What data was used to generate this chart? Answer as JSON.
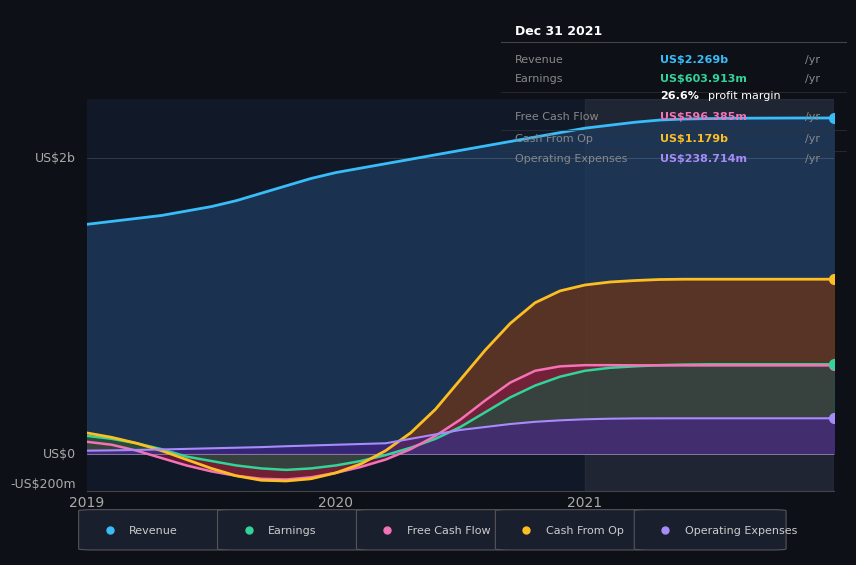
{
  "bg_color": "#0d1117",
  "plot_bg_color": "#111827",
  "ylabel_top": "US$2b",
  "ylabel_zero": "US$0",
  "ylabel_neg": "-US$200m",
  "x_labels": [
    "2019",
    "2020",
    "2021"
  ],
  "ylim": [
    -250000000,
    2400000000
  ],
  "tooltip": {
    "title": "Dec 31 2021",
    "rows": [
      {
        "label": "Revenue",
        "value": "US$2.269b",
        "color": "#38bdf8"
      },
      {
        "label": "Earnings",
        "value": "US$603.913m",
        "color": "#34d399"
      },
      {
        "label": "",
        "value": "26.6% profit margin",
        "color": "#ffffff"
      },
      {
        "label": "Free Cash Flow",
        "value": "US$596.385m",
        "color": "#f472b6"
      },
      {
        "label": "Cash From Op",
        "value": "US$1.179b",
        "color": "#fbbf24"
      },
      {
        "label": "Operating Expenses",
        "value": "US$238.714m",
        "color": "#a78bfa"
      }
    ]
  },
  "legend": [
    {
      "label": "Revenue",
      "color": "#38bdf8"
    },
    {
      "label": "Earnings",
      "color": "#34d399"
    },
    {
      "label": "Free Cash Flow",
      "color": "#f472b6"
    },
    {
      "label": "Cash From Op",
      "color": "#fbbf24"
    },
    {
      "label": "Operating Expenses",
      "color": "#a78bfa"
    }
  ],
  "series": {
    "revenue": {
      "color": "#38bdf8",
      "fill_color": "#1e3a5f",
      "x": [
        0,
        0.1,
        0.2,
        0.3,
        0.4,
        0.5,
        0.6,
        0.7,
        0.8,
        0.9,
        1.0,
        1.1,
        1.2,
        1.3,
        1.4,
        1.5,
        1.6,
        1.7,
        1.8,
        1.9,
        2.0,
        2.1,
        2.2,
        2.3,
        2.4,
        2.5,
        2.6,
        2.7,
        2.8,
        2.9,
        3.0
      ],
      "y": [
        1550000000,
        1570000000,
        1590000000,
        1610000000,
        1640000000,
        1670000000,
        1710000000,
        1760000000,
        1810000000,
        1860000000,
        1900000000,
        1930000000,
        1960000000,
        1990000000,
        2020000000,
        2050000000,
        2080000000,
        2110000000,
        2140000000,
        2170000000,
        2200000000,
        2220000000,
        2240000000,
        2255000000,
        2262000000,
        2265000000,
        2267000000,
        2268000000,
        2268500000,
        2269000000,
        2269000000
      ]
    },
    "earnings": {
      "color": "#34d399",
      "fill_color": "#065f46",
      "x": [
        0,
        0.1,
        0.2,
        0.3,
        0.4,
        0.5,
        0.6,
        0.7,
        0.8,
        0.9,
        1.0,
        1.1,
        1.2,
        1.3,
        1.4,
        1.5,
        1.6,
        1.7,
        1.8,
        1.9,
        2.0,
        2.1,
        2.2,
        2.3,
        2.4,
        2.5,
        2.6,
        2.7,
        2.8,
        2.9,
        3.0
      ],
      "y": [
        120000000,
        100000000,
        70000000,
        30000000,
        -20000000,
        -50000000,
        -80000000,
        -100000000,
        -110000000,
        -100000000,
        -80000000,
        -50000000,
        -10000000,
        40000000,
        100000000,
        180000000,
        280000000,
        380000000,
        460000000,
        520000000,
        560000000,
        580000000,
        590000000,
        598000000,
        602000000,
        604000000,
        604000000,
        603913000,
        603913000,
        603913000,
        603913000
      ]
    },
    "free_cash_flow": {
      "color": "#f472b6",
      "fill_color": "#831843",
      "x": [
        0,
        0.1,
        0.2,
        0.3,
        0.4,
        0.5,
        0.6,
        0.7,
        0.8,
        0.9,
        1.0,
        1.1,
        1.2,
        1.3,
        1.4,
        1.5,
        1.6,
        1.7,
        1.8,
        1.9,
        2.0,
        2.1,
        2.2,
        2.3,
        2.4,
        2.5,
        2.6,
        2.7,
        2.8,
        2.9,
        3.0
      ],
      "y": [
        80000000,
        60000000,
        20000000,
        -30000000,
        -80000000,
        -120000000,
        -150000000,
        -170000000,
        -175000000,
        -160000000,
        -130000000,
        -90000000,
        -40000000,
        30000000,
        120000000,
        230000000,
        360000000,
        480000000,
        560000000,
        590000000,
        598000000,
        598000000,
        597000000,
        596500000,
        596400000,
        596385000,
        596385000,
        596385000,
        596385000,
        596385000,
        596385000
      ]
    },
    "cash_from_op": {
      "color": "#fbbf24",
      "fill_color": "#78350f",
      "x": [
        0,
        0.1,
        0.2,
        0.3,
        0.4,
        0.5,
        0.6,
        0.7,
        0.8,
        0.9,
        1.0,
        1.1,
        1.2,
        1.3,
        1.4,
        1.5,
        1.6,
        1.7,
        1.8,
        1.9,
        2.0,
        2.1,
        2.2,
        2.3,
        2.4,
        2.5,
        2.6,
        2.7,
        2.8,
        2.9,
        3.0
      ],
      "y": [
        140000000,
        110000000,
        70000000,
        20000000,
        -40000000,
        -100000000,
        -150000000,
        -180000000,
        -185000000,
        -170000000,
        -130000000,
        -70000000,
        20000000,
        140000000,
        300000000,
        500000000,
        700000000,
        880000000,
        1020000000,
        1100000000,
        1140000000,
        1160000000,
        1170000000,
        1177000000,
        1179000000,
        1179000000,
        1179000000,
        1179000000,
        1179000000,
        1179000000,
        1179000000
      ]
    },
    "operating_expenses": {
      "color": "#a78bfa",
      "fill_color": "#4c1d95",
      "x": [
        0,
        0.1,
        0.2,
        0.3,
        0.4,
        0.5,
        0.6,
        0.7,
        0.8,
        0.9,
        1.0,
        1.1,
        1.2,
        1.3,
        1.4,
        1.5,
        1.6,
        1.7,
        1.8,
        1.9,
        2.0,
        2.1,
        2.2,
        2.3,
        2.4,
        2.5,
        2.6,
        2.7,
        2.8,
        2.9,
        3.0
      ],
      "y": [
        20000000,
        22000000,
        25000000,
        28000000,
        32000000,
        36000000,
        40000000,
        44000000,
        50000000,
        55000000,
        60000000,
        65000000,
        70000000,
        100000000,
        130000000,
        160000000,
        180000000,
        200000000,
        215000000,
        225000000,
        232000000,
        236000000,
        238000000,
        238500000,
        238700000,
        238714000,
        238714000,
        238714000,
        238714000,
        238714000,
        238714000
      ]
    }
  }
}
